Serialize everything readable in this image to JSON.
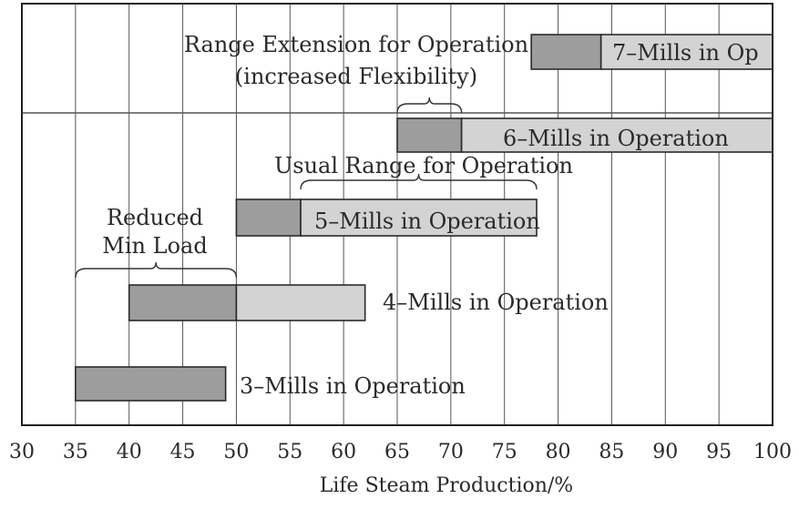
{
  "chart_data": {
    "type": "bar",
    "orientation": "horizontal-range",
    "title": "",
    "xlabel": "Life Steam Production/%",
    "ylabel": "",
    "xlim": [
      30,
      100
    ],
    "xticks": [
      30,
      35,
      40,
      45,
      50,
      55,
      60,
      65,
      70,
      75,
      80,
      85,
      90,
      95,
      100
    ],
    "grid": "vertical",
    "colors": {
      "dark": "#9d9d9d",
      "light": "#d3d3d3",
      "stroke": "#2a2a2a",
      "grid": "#555555"
    },
    "bars": [
      {
        "label": "3–Mills in Operation",
        "segments": [
          {
            "from": 35,
            "to": 49,
            "shade": "dark"
          }
        ]
      },
      {
        "label": "4–Mills in Operation",
        "segments": [
          {
            "from": 40,
            "to": 50,
            "shade": "dark"
          },
          {
            "from": 50,
            "to": 62,
            "shade": "light"
          }
        ]
      },
      {
        "label": "5–Mills in Operation",
        "segments": [
          {
            "from": 50,
            "to": 56,
            "shade": "dark"
          },
          {
            "from": 56,
            "to": 78,
            "shade": "light"
          }
        ]
      },
      {
        "label": "6–Mills in Operation",
        "segments": [
          {
            "from": 65,
            "to": 71,
            "shade": "dark"
          },
          {
            "from": 71,
            "to": 100,
            "shade": "light"
          }
        ]
      },
      {
        "label": "7–Mills in Op",
        "segments": [
          {
            "from": 77.5,
            "to": 84,
            "shade": "dark"
          },
          {
            "from": 84,
            "to": 100,
            "shade": "light"
          }
        ]
      }
    ],
    "annotations": [
      {
        "lines": [
          "Reduced",
          "Min Load"
        ],
        "brace": [
          35,
          50
        ]
      },
      {
        "lines": [
          "Usual Range for Operation"
        ],
        "brace": [
          56,
          78
        ]
      },
      {
        "lines": [
          "Range Extension for Operation",
          "(increased Flexibility)"
        ],
        "brace": [
          65,
          71
        ]
      }
    ]
  }
}
